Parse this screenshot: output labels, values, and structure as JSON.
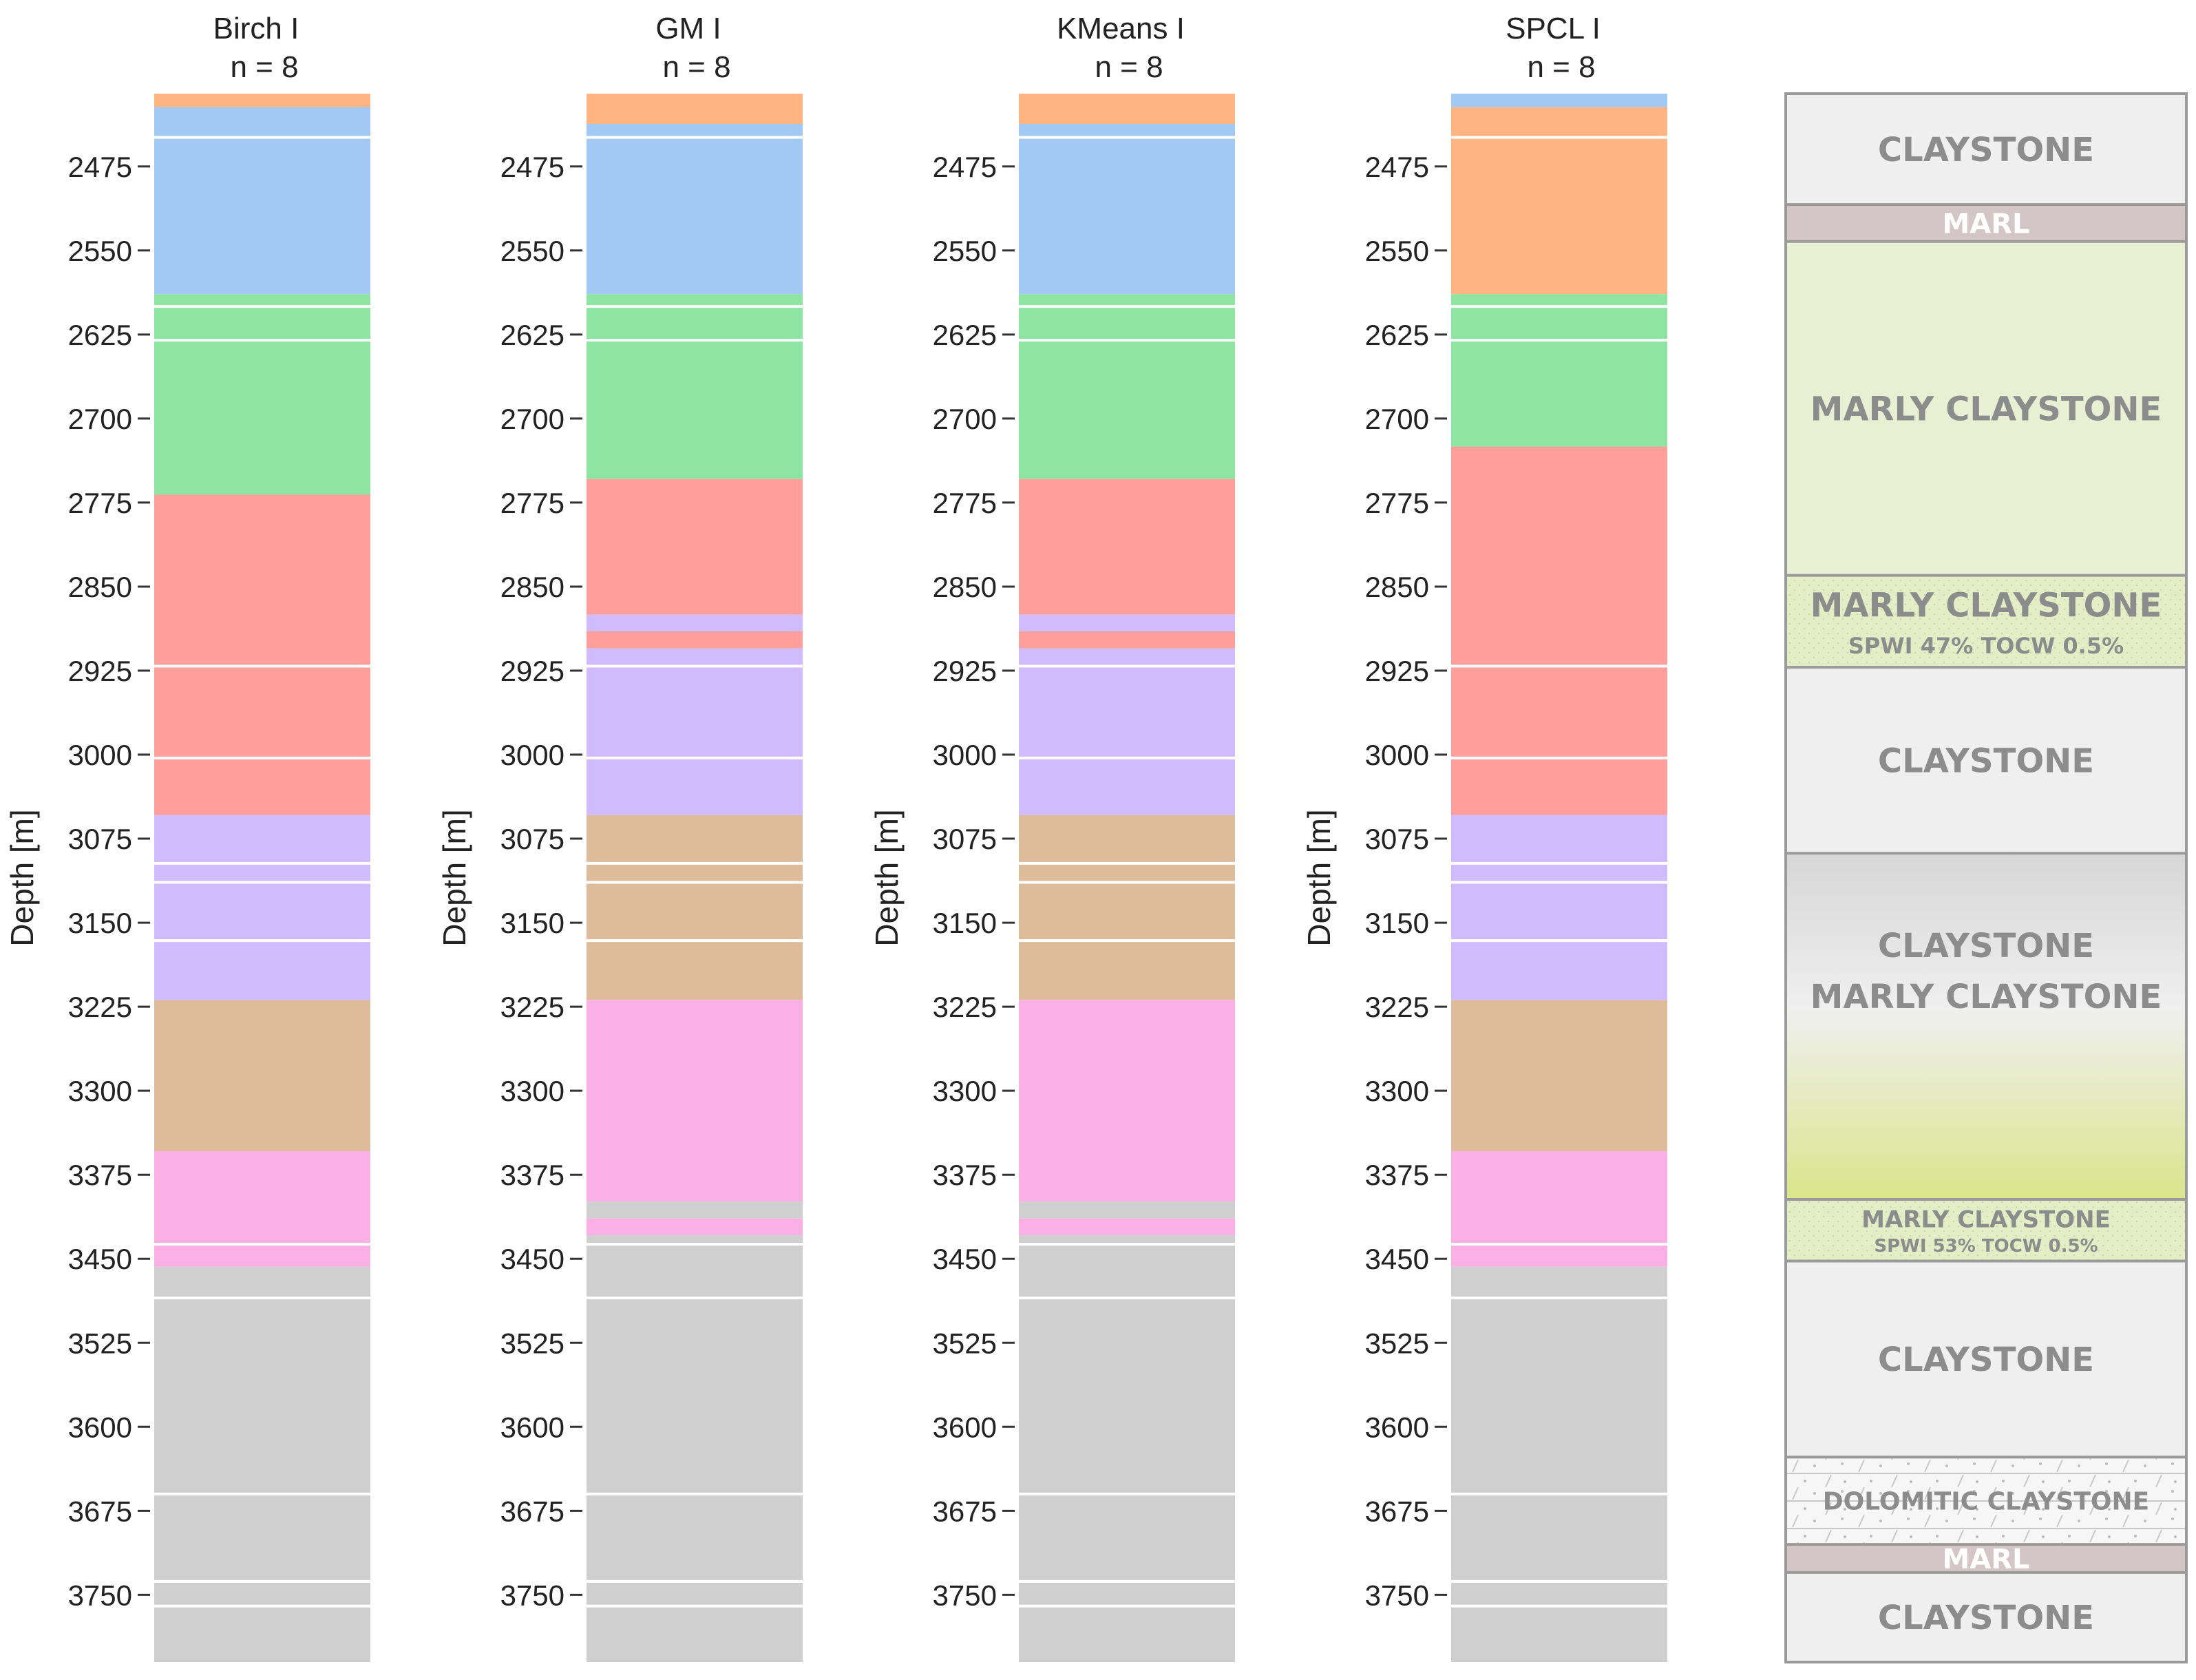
{
  "chart_data": {
    "type": "column",
    "y_axis": {
      "label": "Depth [m]",
      "ylim": [
        2410,
        3810
      ],
      "inverted": true,
      "ticks": [
        2475,
        2550,
        2625,
        2700,
        2775,
        2850,
        2925,
        3000,
        3075,
        3150,
        3225,
        3300,
        3375,
        3450,
        3525,
        3600,
        3675,
        3750
      ]
    },
    "formation_boundaries": [
      2449,
      2449,
      2600,
      2630,
      2921,
      3003,
      3097,
      3114,
      3166,
      3437,
      3485,
      3660,
      3738,
      3760
    ],
    "cluster_colors": {
      "orange": "#ffb482",
      "blue": "#a1c9f4",
      "green": "#8de5a1",
      "red": "#ff9f9b",
      "purple": "#d0bbff",
      "brown": "#debb9b",
      "pink": "#fab0e4",
      "gray": "#cfcfcf"
    },
    "columns": [
      {
        "name": "Birch I",
        "n_label": "n = 8",
        "segments": [
          {
            "top": 2410,
            "bottom": 2422,
            "cluster": "orange"
          },
          {
            "top": 2422,
            "bottom": 2589,
            "cluster": "blue"
          },
          {
            "top": 2589,
            "bottom": 2768,
            "cluster": "green"
          },
          {
            "top": 2768,
            "bottom": 3054,
            "cluster": "red"
          },
          {
            "top": 3054,
            "bottom": 3219,
            "cluster": "purple"
          },
          {
            "top": 3219,
            "bottom": 3354,
            "cluster": "brown"
          },
          {
            "top": 3354,
            "bottom": 3457,
            "cluster": "pink"
          },
          {
            "top": 3457,
            "bottom": 3810,
            "cluster": "gray"
          }
        ]
      },
      {
        "name": "GM I",
        "n_label": "n = 8",
        "segments": [
          {
            "top": 2410,
            "bottom": 2437,
            "cluster": "orange"
          },
          {
            "top": 2437,
            "bottom": 2589,
            "cluster": "blue"
          },
          {
            "top": 2589,
            "bottom": 2754,
            "cluster": "green"
          },
          {
            "top": 2754,
            "bottom": 2875,
            "cluster": "red"
          },
          {
            "top": 2875,
            "bottom": 2890,
            "cluster": "purple"
          },
          {
            "top": 2890,
            "bottom": 2905,
            "cluster": "red"
          },
          {
            "top": 2905,
            "bottom": 3054,
            "cluster": "purple"
          },
          {
            "top": 3054,
            "bottom": 3219,
            "cluster": "brown"
          },
          {
            "top": 3219,
            "bottom": 3399,
            "cluster": "pink"
          },
          {
            "top": 3399,
            "bottom": 3414,
            "cluster": "gray"
          },
          {
            "top": 3414,
            "bottom": 3429,
            "cluster": "pink"
          },
          {
            "top": 3429,
            "bottom": 3810,
            "cluster": "gray"
          }
        ]
      },
      {
        "name": "KMeans I",
        "n_label": "n = 8",
        "segments": [
          {
            "top": 2410,
            "bottom": 2437,
            "cluster": "orange"
          },
          {
            "top": 2437,
            "bottom": 2589,
            "cluster": "blue"
          },
          {
            "top": 2589,
            "bottom": 2754,
            "cluster": "green"
          },
          {
            "top": 2754,
            "bottom": 2875,
            "cluster": "red"
          },
          {
            "top": 2875,
            "bottom": 2890,
            "cluster": "purple"
          },
          {
            "top": 2890,
            "bottom": 2905,
            "cluster": "red"
          },
          {
            "top": 2905,
            "bottom": 3054,
            "cluster": "purple"
          },
          {
            "top": 3054,
            "bottom": 3219,
            "cluster": "brown"
          },
          {
            "top": 3219,
            "bottom": 3399,
            "cluster": "pink"
          },
          {
            "top": 3399,
            "bottom": 3414,
            "cluster": "gray"
          },
          {
            "top": 3414,
            "bottom": 3429,
            "cluster": "pink"
          },
          {
            "top": 3429,
            "bottom": 3810,
            "cluster": "gray"
          }
        ]
      },
      {
        "name": "SPCL I",
        "n_label": "n = 8",
        "segments": [
          {
            "top": 2410,
            "bottom": 2422,
            "cluster": "blue"
          },
          {
            "top": 2422,
            "bottom": 2589,
            "cluster": "orange"
          },
          {
            "top": 2589,
            "bottom": 2725,
            "cluster": "green"
          },
          {
            "top": 2725,
            "bottom": 3054,
            "cluster": "red"
          },
          {
            "top": 3054,
            "bottom": 3219,
            "cluster": "purple"
          },
          {
            "top": 3219,
            "bottom": 3354,
            "cluster": "brown"
          },
          {
            "top": 3354,
            "bottom": 3457,
            "cluster": "pink"
          },
          {
            "top": 3457,
            "bottom": 3810,
            "cluster": "gray"
          }
        ]
      }
    ],
    "lithology": {
      "border_color": "#9a9a9a",
      "text_color": "#8c8c8c",
      "units": [
        {
          "top": 2410,
          "bottom": 2509,
          "label": "CLAYSTONE",
          "fill": "#efefef"
        },
        {
          "top": 2509,
          "bottom": 2542,
          "label": "MARL",
          "fill": "#d4c6c6",
          "text_color": "#ffffff"
        },
        {
          "top": 2542,
          "bottom": 2840,
          "label": "MARLY CLAYSTONE",
          "fill": "#e9efd3"
        },
        {
          "top": 2840,
          "bottom": 2922,
          "label": "MARLY CLAYSTONE",
          "sublabel": "SPWI 47% TOCW 0.5%",
          "fill": "#e4edc6",
          "dotted": true
        },
        {
          "top": 2922,
          "bottom": 3088,
          "label": "CLAYSTONE",
          "fill": "#efefef"
        },
        {
          "top": 3088,
          "bottom": 3397,
          "label": "CLAYSTONE",
          "label2": "MARLY CLAYSTONE",
          "gradient": [
            "#d6d6d6",
            "#efefef",
            "#d9e58a"
          ]
        },
        {
          "top": 3397,
          "bottom": 3452,
          "label": "MARLY CLAYSTONE",
          "sublabel": "SPWI 53% TOCW 0.5%",
          "fill": "#e4edc6",
          "dotted": true
        },
        {
          "top": 3452,
          "bottom": 3627,
          "label": "CLAYSTONE",
          "fill": "#efefef"
        },
        {
          "top": 3627,
          "bottom": 3705,
          "label": "DOLOMITIC CLAYSTONE",
          "fill": "#f6f6f6",
          "hatched": true
        },
        {
          "top": 3705,
          "bottom": 3730,
          "label": "MARL",
          "fill": "#d4c6c6",
          "text_color": "#ffffff"
        },
        {
          "top": 3730,
          "bottom": 3810,
          "label": "CLAYSTONE",
          "fill": "#efefef"
        }
      ]
    }
  }
}
